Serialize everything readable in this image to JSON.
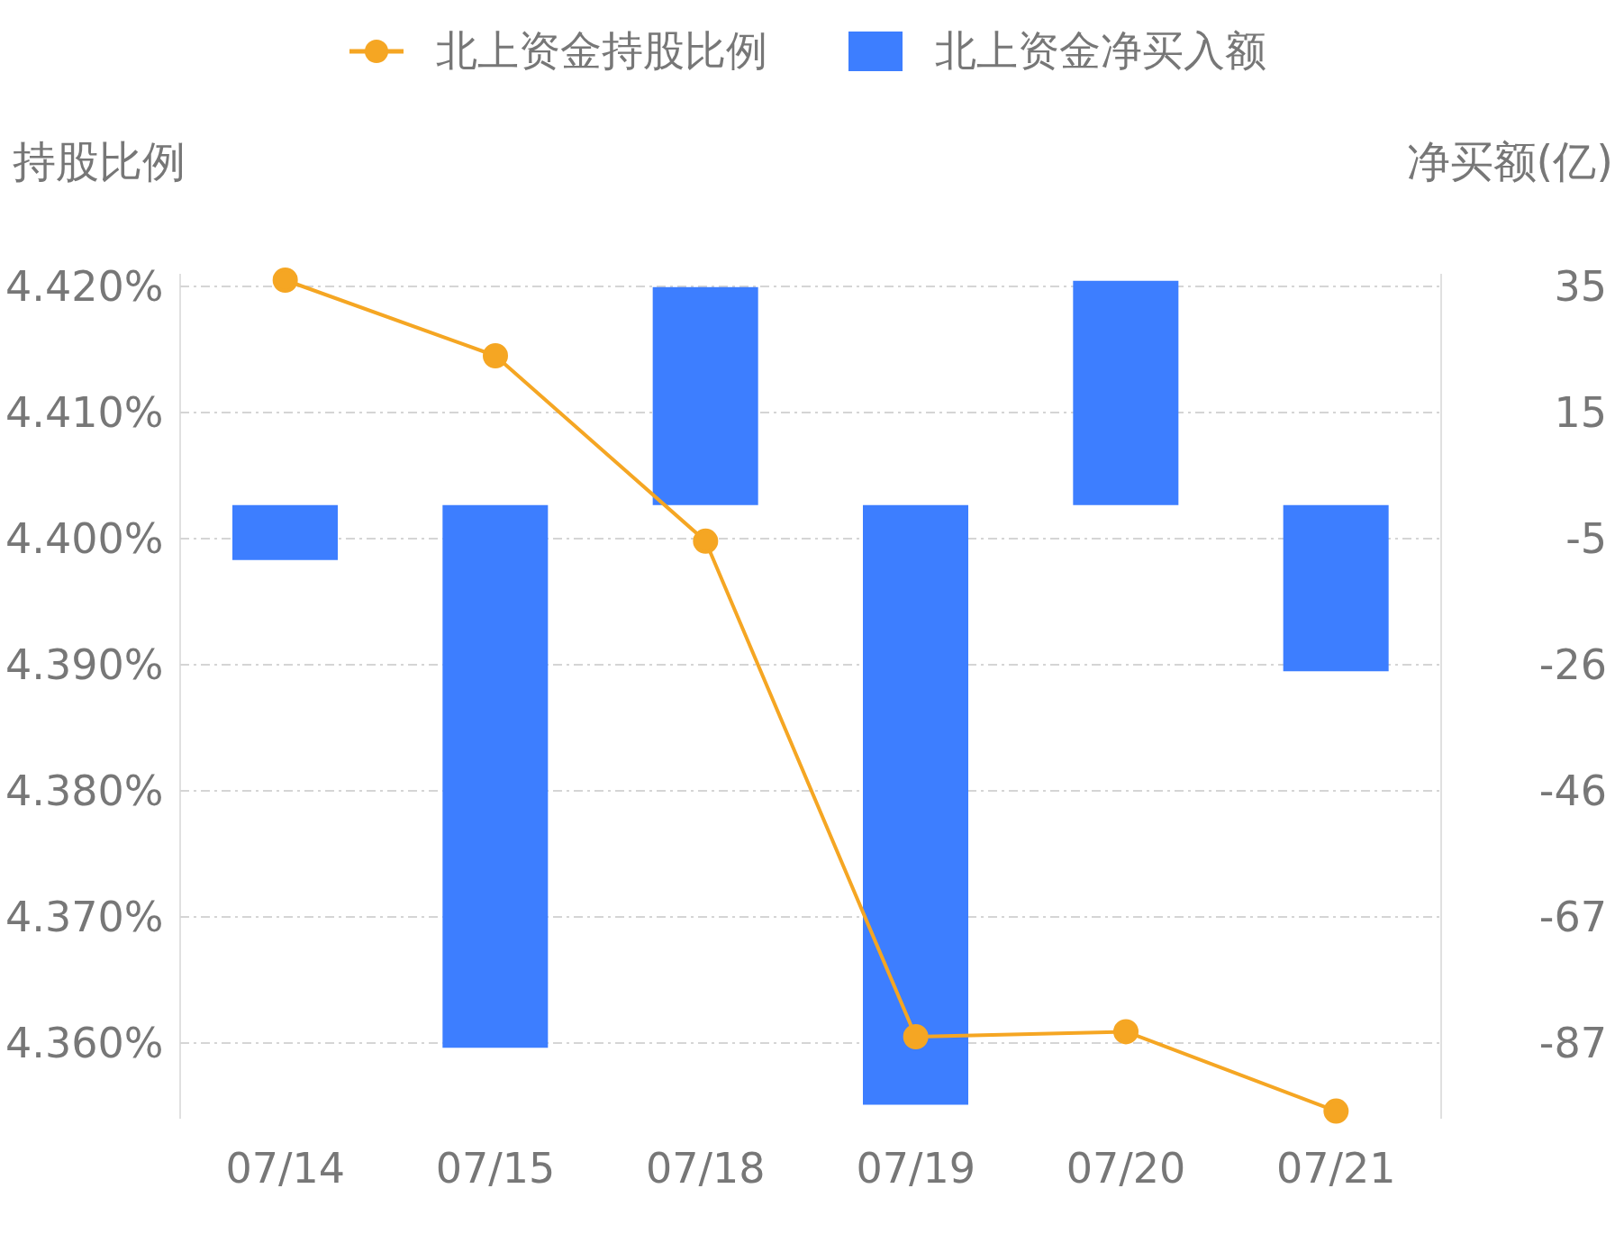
{
  "chart_data": {
    "type": "bar",
    "categories": [
      "07/14",
      "07/15",
      "07/18",
      "07/19",
      "07/20",
      "07/21"
    ],
    "ylabel": "持股比例",
    "y2label": "净买额(亿)",
    "series": [
      {
        "name": "北上资金持股比例",
        "type": "line",
        "color": "#f5a623",
        "values": [
          4.4205,
          4.4145,
          4.3998,
          4.3605,
          4.3609,
          4.3546
        ]
      },
      {
        "name": "北上资金净买入额",
        "axis": "y2",
        "color": "#3d7eff",
        "values": [
          -8.9,
          -87.9,
          35.3,
          -97.1,
          36.3,
          -26.9
        ]
      }
    ],
    "ylim": [
      4.354,
      4.421
    ],
    "yticks": [
      {
        "value": 4.36,
        "label": "4.360%"
      },
      {
        "value": 4.37,
        "label": "4.370%"
      },
      {
        "value": 4.38,
        "label": "4.380%"
      },
      {
        "value": 4.39,
        "label": "4.390%"
      },
      {
        "value": 4.4,
        "label": "4.400%"
      },
      {
        "value": 4.41,
        "label": "4.410%"
      },
      {
        "value": 4.42,
        "label": "4.420%"
      }
    ],
    "y2lim": [
      -99.37,
      37.44
    ],
    "y2ticks": [
      {
        "value": -87.12,
        "label": "-87"
      },
      {
        "value": -66.7,
        "label": "-67"
      },
      {
        "value": -46.28,
        "label": "-46"
      },
      {
        "value": -25.86,
        "label": "-26"
      },
      {
        "value": -5.44,
        "label": "-5"
      },
      {
        "value": 14.98,
        "label": "15"
      },
      {
        "value": 35.4,
        "label": "35"
      }
    ],
    "grid": "y",
    "legend": "top",
    "marker": "circle",
    "line_style": "solid"
  }
}
